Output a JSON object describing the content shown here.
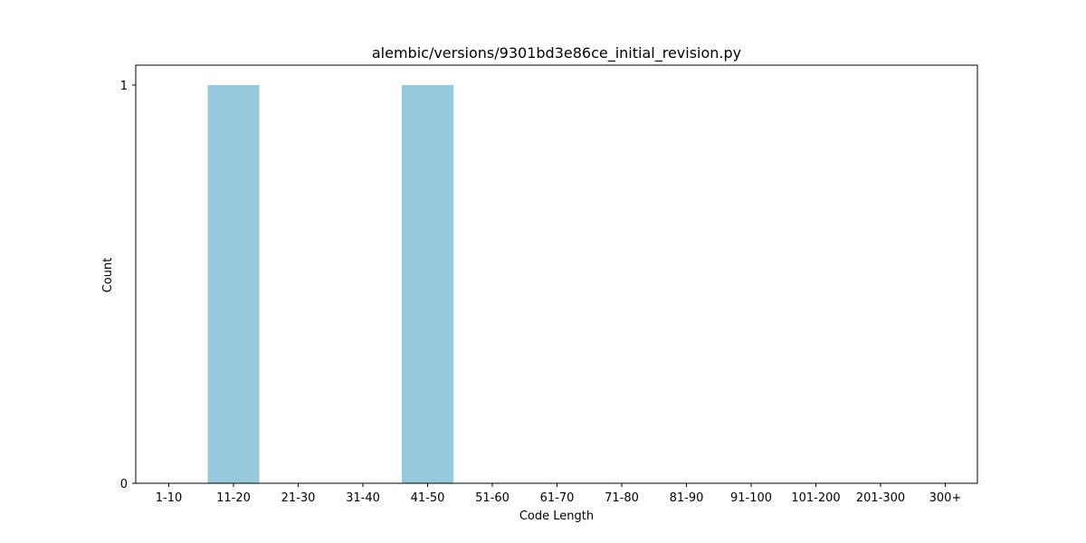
{
  "chart_data": {
    "type": "bar",
    "title": "alembic/versions/9301bd3e86ce_initial_revision.py",
    "xlabel": "Code Length",
    "ylabel": "Count",
    "categories": [
      "1-10",
      "11-20",
      "21-30",
      "31-40",
      "41-50",
      "51-60",
      "61-70",
      "71-80",
      "81-90",
      "91-100",
      "101-200",
      "201-300",
      "300+"
    ],
    "values": [
      0,
      1,
      0,
      0,
      1,
      0,
      0,
      0,
      0,
      0,
      0,
      0,
      0
    ],
    "ylim": [
      0,
      1
    ],
    "yticks": [
      0,
      1
    ],
    "grid": false,
    "legend": false,
    "bar_color": "#96c9dc"
  }
}
